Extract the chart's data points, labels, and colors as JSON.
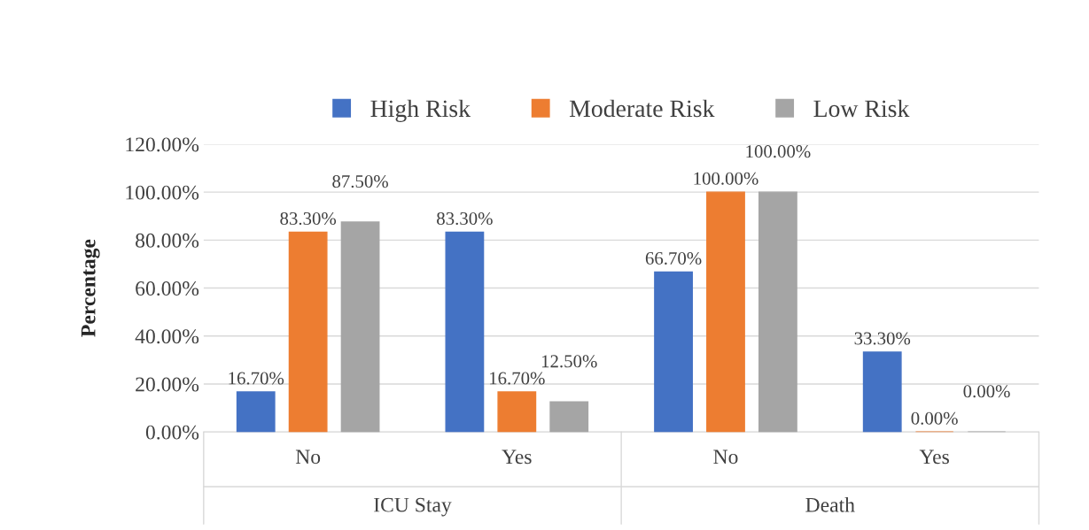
{
  "chart_data": {
    "type": "bar",
    "ylabel": "Percentage",
    "categories": [
      "No",
      "Yes",
      "No",
      "Yes"
    ],
    "series": [
      {
        "name": "High Risk",
        "color": "#4472c4",
        "values": [
          16.7,
          83.3,
          66.7,
          33.3
        ],
        "value_labels": [
          "16.70%",
          "83.30%",
          "66.70%",
          "33.30%"
        ]
      },
      {
        "name": "Moderate Risk",
        "color": "#ed7d31",
        "values": [
          83.3,
          16.7,
          100,
          0
        ],
        "value_labels": [
          "83.30%",
          "16.70%",
          "100.00%",
          "0.00%"
        ]
      },
      {
        "name": "Low Risk",
        "color": "#a5a5a5",
        "values": [
          87.5,
          12.5,
          100,
          0
        ],
        "value_labels": [
          "87.50%",
          "12.50%",
          "100.00%",
          "0.00%"
        ]
      }
    ],
    "annotations": [
      "ICU Stay",
      "Death"
    ],
    "ylim": [
      0,
      120
    ],
    "yticks": [
      {
        "value": 0,
        "label": "0.00%"
      },
      {
        "value": 20,
        "label": "20.00%"
      },
      {
        "value": 40,
        "label": "40.00%"
      },
      {
        "value": 60,
        "label": "60.00%"
      },
      {
        "value": 80,
        "label": "80.00%"
      },
      {
        "value": 100,
        "label": "100.00%"
      },
      {
        "value": 120,
        "label": "120.00%"
      }
    ],
    "grid": "y",
    "legend": "top"
  }
}
